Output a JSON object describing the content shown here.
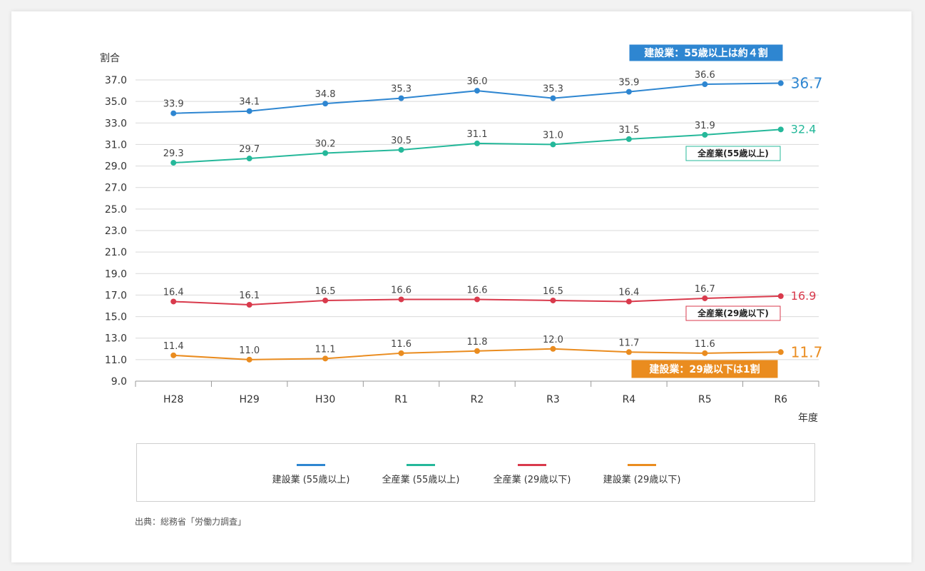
{
  "chart_data": {
    "type": "line",
    "ylabel": "割合",
    "xlabel": "年度",
    "categories": [
      "H28",
      "H29",
      "H30",
      "R1",
      "R2",
      "R3",
      "R4",
      "R5",
      "R6"
    ],
    "ylim": [
      9.0,
      37.0
    ],
    "yticks": [
      9.0,
      11.0,
      13.0,
      15.0,
      17.0,
      19.0,
      21.0,
      23.0,
      25.0,
      27.0,
      29.0,
      31.0,
      33.0,
      35.0,
      37.0
    ],
    "grid": true,
    "legend_position": "bottom",
    "series": [
      {
        "name": "建設業 (55歳以上)",
        "color": "#2e86d1",
        "values": [
          33.9,
          34.1,
          34.8,
          35.3,
          36.0,
          35.3,
          35.9,
          36.6,
          36.7
        ]
      },
      {
        "name": "全産業 (55歳以上)",
        "color": "#25b89a",
        "values": [
          29.3,
          29.7,
          30.2,
          30.5,
          31.1,
          31.0,
          31.5,
          31.9,
          32.4
        ]
      },
      {
        "name": "全産業 (29歳以下)",
        "color": "#d93a4c",
        "values": [
          16.4,
          16.1,
          16.5,
          16.6,
          16.6,
          16.5,
          16.4,
          16.7,
          16.9
        ]
      },
      {
        "name": "建設業 (29歳以下)",
        "color": "#ea8c1f",
        "values": [
          11.4,
          11.0,
          11.1,
          11.6,
          11.8,
          12.0,
          11.7,
          11.6,
          11.7
        ]
      }
    ],
    "annotations": [
      {
        "text": "建設業：55歳以上は約４割",
        "series": 0,
        "style": "filled",
        "color": "#2e86d1"
      },
      {
        "text": "全産業(55歳以上)",
        "series": 1,
        "style": "outlined",
        "color": "#25b89a"
      },
      {
        "text": "全産業(29歳以下)",
        "series": 2,
        "style": "outlined",
        "color": "#d93a4c"
      },
      {
        "text": "建設業：29歳以下は1割",
        "series": 3,
        "style": "filled",
        "color": "#ea8c1f"
      }
    ]
  },
  "source": "出典：総務省「労働力調査」"
}
